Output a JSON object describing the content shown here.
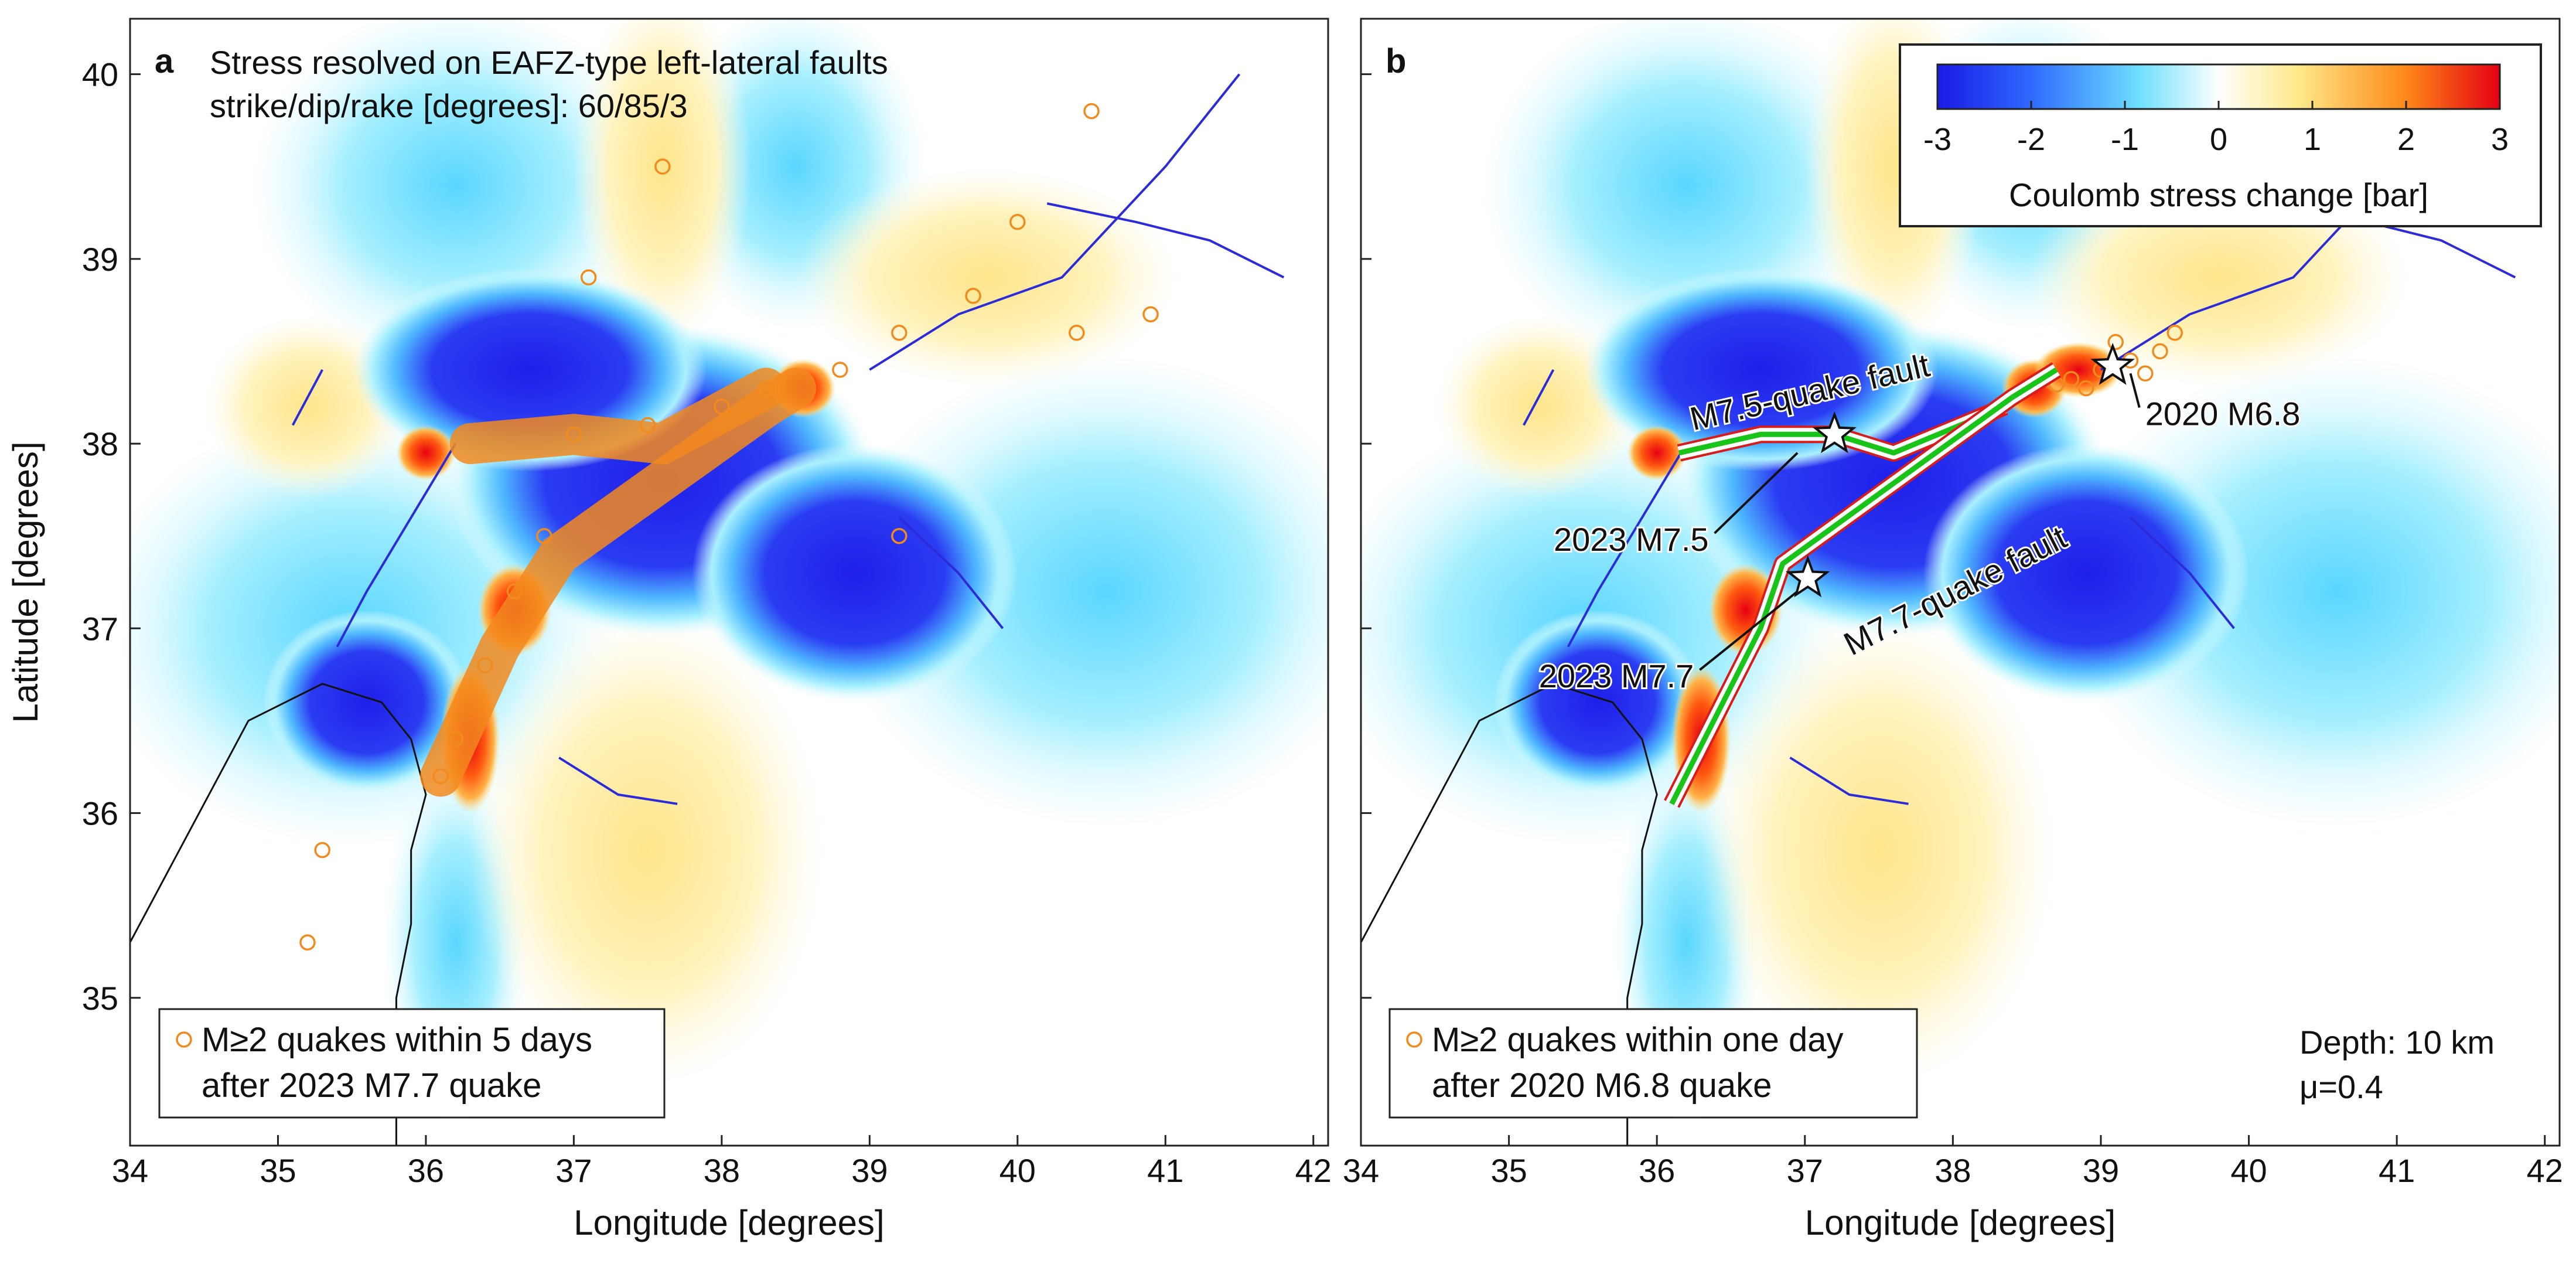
{
  "chart_data": [
    {
      "type": "heatmap",
      "panel_label": "a",
      "title_line1": "Stress resolved on EAFZ-type left-lateral faults",
      "title_line2": "strike/dip/rake [degrees]: 60/85/3",
      "xlabel": "Longitude [degrees]",
      "ylabel": "Latitude [degrees]",
      "xlim": [
        34,
        42.1
      ],
      "ylim": [
        34.2,
        40.3
      ],
      "xticks": [
        34,
        35,
        36,
        37,
        38,
        39,
        40,
        41,
        42
      ],
      "yticks": [
        35,
        36,
        37,
        38,
        39,
        40
      ],
      "legend_line1": "M≥2 quakes within 5 days",
      "legend_line2": "after 2023 M7.7 quake",
      "color_scale": "coulomb stress change",
      "aftershock_color": "#f28a1e",
      "aftershocks_approx": [
        [
          37.0,
          38.05
        ],
        [
          37.5,
          38.1
        ],
        [
          38.0,
          38.2
        ],
        [
          38.3,
          38.3
        ],
        [
          36.8,
          37.5
        ],
        [
          36.6,
          37.2
        ],
        [
          36.4,
          36.8
        ],
        [
          36.2,
          36.4
        ],
        [
          36.1,
          36.2
        ],
        [
          38.8,
          38.4
        ],
        [
          39.2,
          38.6
        ],
        [
          39.7,
          38.8
        ],
        [
          40.0,
          39.2
        ],
        [
          40.5,
          39.8
        ],
        [
          40.4,
          38.6
        ],
        [
          40.9,
          38.7
        ],
        [
          35.3,
          35.8
        ],
        [
          35.2,
          35.3
        ],
        [
          37.1,
          38.9
        ],
        [
          37.6,
          39.5
        ],
        [
          39.2,
          37.5
        ]
      ]
    },
    {
      "type": "heatmap",
      "panel_label": "b",
      "xlabel": "Longitude [degrees]",
      "xlim": [
        34,
        42.1
      ],
      "ylim": [
        34.2,
        40.3
      ],
      "xticks": [
        34,
        35,
        36,
        37,
        38,
        39,
        40,
        41,
        42
      ],
      "yticks": [
        35,
        36,
        37,
        38,
        39,
        40
      ],
      "colorbar": {
        "label": "Coulomb stress change [bar]",
        "ticks": [
          -3,
          -2,
          -1,
          0,
          1,
          2,
          3
        ],
        "range": [
          -3,
          3
        ],
        "colormap": [
          "#1a1ae6",
          "#2f6bff",
          "#6fe0ff",
          "#ffffff",
          "#ffe98a",
          "#ff8a1a",
          "#e60012"
        ]
      },
      "faults": [
        {
          "label": "M7.5-quake fault",
          "path": [
            [
              36.15,
              37.95
            ],
            [
              36.7,
              38.05
            ],
            [
              37.2,
              38.05
            ],
            [
              37.6,
              37.95
            ],
            [
              38.35,
              38.2
            ]
          ]
        },
        {
          "label": "M7.7-quake fault",
          "path": [
            [
              36.1,
              36.05
            ],
            [
              36.7,
              37.0
            ],
            [
              36.85,
              37.35
            ],
            [
              38.4,
              38.25
            ],
            [
              38.7,
              38.4
            ]
          ]
        }
      ],
      "epicenters": [
        {
          "label": "2023 M7.5",
          "lon": 37.2,
          "lat": 38.05
        },
        {
          "label": "2023 M7.7",
          "lon": 37.02,
          "lat": 37.27
        },
        {
          "label": "2020 M6.8",
          "lon": 39.08,
          "lat": 38.42
        }
      ],
      "legend_line1": "M≥2 quakes within one day",
      "legend_line2": "after 2020 M6.8 quake",
      "depth_text": "Depth: 10 km",
      "mu_text": "μ=0.4",
      "aftershock_color": "#f28a1e",
      "aftershocks_approx": [
        [
          38.8,
          38.35
        ],
        [
          39.0,
          38.4
        ],
        [
          39.2,
          38.45
        ],
        [
          39.4,
          38.5
        ],
        [
          38.9,
          38.3
        ],
        [
          39.1,
          38.55
        ],
        [
          39.3,
          38.38
        ],
        [
          38.7,
          38.32
        ],
        [
          39.5,
          38.6
        ]
      ]
    }
  ]
}
